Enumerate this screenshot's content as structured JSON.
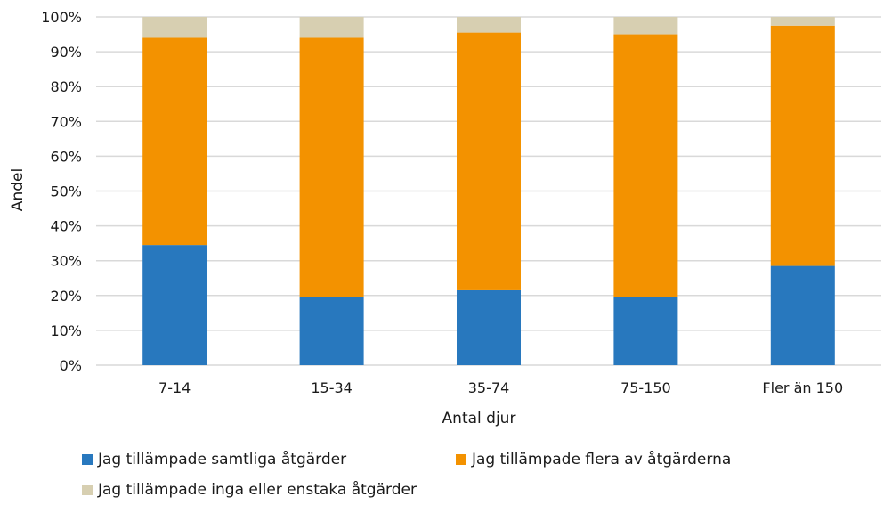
{
  "chart_data": {
    "type": "bar",
    "stacked": true,
    "categories": [
      "7-14",
      "15-34",
      "35-74",
      "75-150",
      "Fler än 150"
    ],
    "series": [
      {
        "name": "Jag tillämpade samtliga åtgärder",
        "color": "#2878be",
        "values": [
          34.5,
          19.5,
          21.5,
          19.5,
          28.5
        ]
      },
      {
        "name": "Jag tillämpade flera av åtgärderna",
        "color": "#f39200",
        "values": [
          59.5,
          74.5,
          74.0,
          75.5,
          69.0
        ]
      },
      {
        "name": "Jag tillämpade inga eller enstaka åtgärder",
        "color": "#d7cfb1",
        "values": [
          6.0,
          6.0,
          4.5,
          5.0,
          2.5
        ]
      }
    ],
    "xlabel": "Antal djur",
    "ylabel": "Andel",
    "ylim": [
      0,
      100
    ],
    "yticks": [
      "0%",
      "10%",
      "20%",
      "30%",
      "40%",
      "50%",
      "60%",
      "70%",
      "80%",
      "90%",
      "100%"
    ],
    "grid": true,
    "gridColor": "#d9d9d9",
    "legend_position": "bottom"
  }
}
